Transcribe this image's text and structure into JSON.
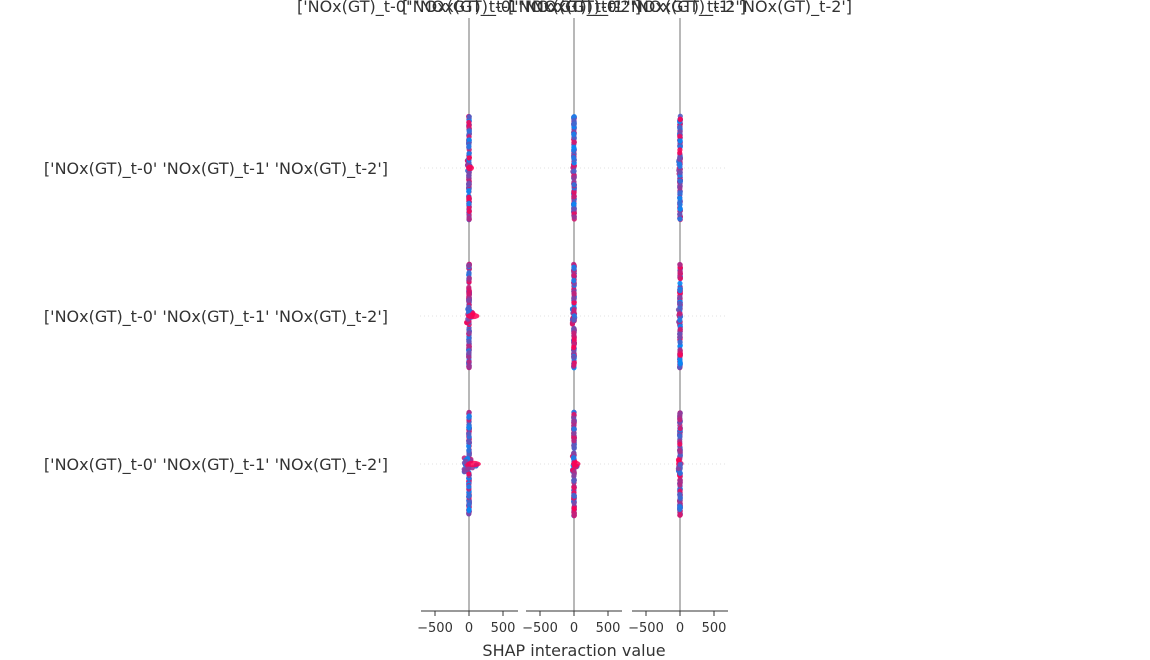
{
  "chart_data": {
    "type": "scatter",
    "xlabel": "SHAP interaction value",
    "panel_titles": [
      "['NOx(GT)_t-0' 'NOx(GT)_t-1' 'NOx(GT)_t-2']",
      "['NOx(GT)_t-0' 'NOx(GT)_t-1' 'NOx(GT)_t-2']",
      "['NOx(GT)_t-0' 'NOx(GT)_t-1' 'NOx(GT)_t-2']"
    ],
    "row_labels": [
      "['NOx(GT)_t-0' 'NOx(GT)_t-1' 'NOx(GT)_t-2']",
      "['NOx(GT)_t-0' 'NOx(GT)_t-1' 'NOx(GT)_t-2']",
      "['NOx(GT)_t-0' 'NOx(GT)_t-1' 'NOx(GT)_t-2']"
    ],
    "x_ticks": [
      -500,
      0,
      500
    ],
    "x_tick_labels": [
      "−500",
      "0",
      "500"
    ],
    "xlim": [
      -650,
      650
    ],
    "color_low": "#008bfb",
    "color_high": "#ff0052",
    "cells": [
      [
        {
          "row": 0,
          "col": 0,
          "min": -20,
          "max": 30,
          "peak_x": 30,
          "peak_y": 0.0
        },
        {
          "row": 0,
          "col": 1,
          "min": -15,
          "max": 20,
          "peak_x": 0,
          "peak_y": 0.0
        },
        {
          "row": 0,
          "col": 2,
          "min": -15,
          "max": 15,
          "peak_x": 0,
          "peak_y": 0.0
        }
      ],
      [
        {
          "row": 1,
          "col": 0,
          "min": -30,
          "max": 120,
          "peak_x": 110,
          "peak_y": 0.0
        },
        {
          "row": 1,
          "col": 1,
          "min": -20,
          "max": 20,
          "peak_x": 0,
          "peak_y": 0.0
        },
        {
          "row": 1,
          "col": 2,
          "min": -20,
          "max": 15,
          "peak_x": 0,
          "peak_y": 0.0
        }
      ],
      [
        {
          "row": 2,
          "col": 0,
          "min": -60,
          "max": 140,
          "peak_x": 130,
          "peak_y": 0.0
        },
        {
          "row": 2,
          "col": 1,
          "min": -20,
          "max": 60,
          "peak_x": 50,
          "peak_y": 0.0
        },
        {
          "row": 2,
          "col": 2,
          "min": -20,
          "max": 15,
          "peak_x": 0,
          "peak_y": 0.0
        }
      ]
    ]
  }
}
